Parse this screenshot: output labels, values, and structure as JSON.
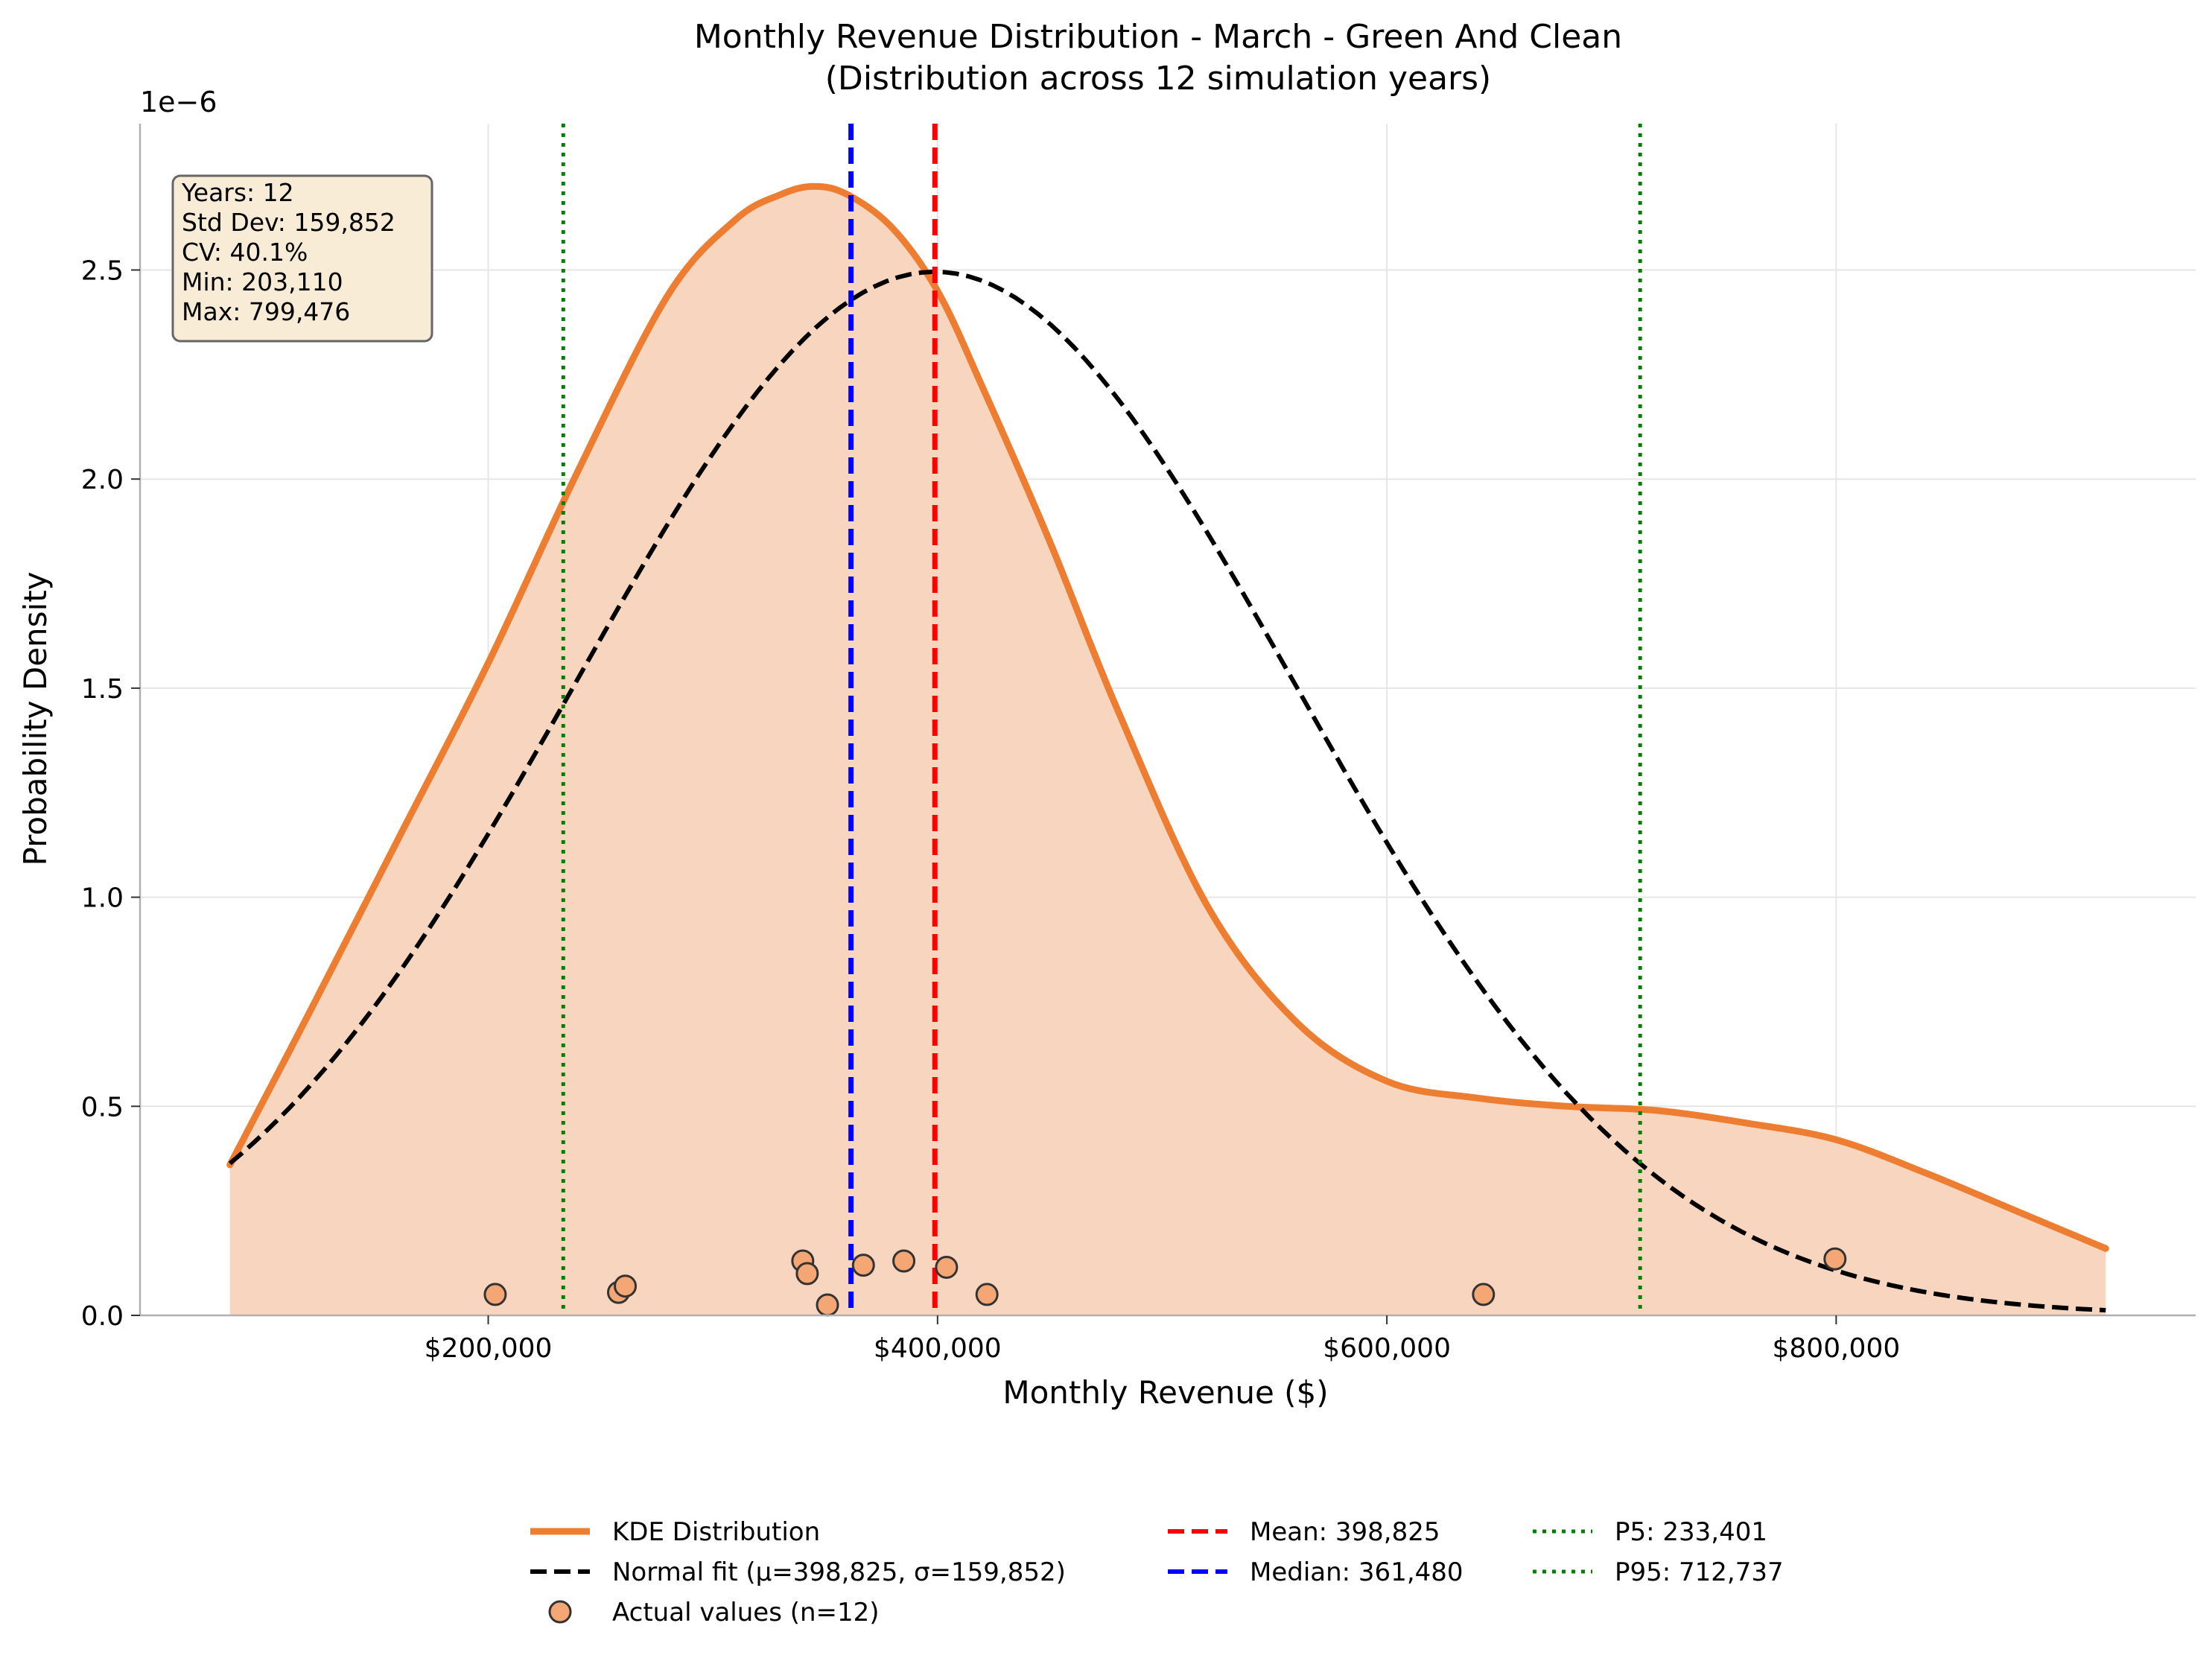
{
  "chart_data": {
    "type": "line",
    "title": "Monthly Revenue Distribution - March - Green And Clean",
    "subtitle": "(Distribution across 12 simulation years)",
    "xlabel": "Monthly Revenue ($)",
    "ylabel": "Probability Density",
    "y_scale_label": "1e−6",
    "xlim": [
      45000,
      960000
    ],
    "ylim": [
      0,
      2.85
    ],
    "x_ticks": [
      200000,
      400000,
      600000,
      800000
    ],
    "x_tick_labels": [
      "$200,000",
      "$400,000",
      "$600,000",
      "$800,000"
    ],
    "y_ticks": [
      0,
      0.5,
      1.0,
      1.5,
      2.0,
      2.5
    ],
    "y_tick_labels": [
      "0.0",
      "0.5",
      "1.0",
      "1.5",
      "2.0",
      "2.5"
    ],
    "grid": true,
    "legend_position": "bottom-center",
    "colors": {
      "kde": "#ED7D31",
      "kde_fill": "#F8D5BF",
      "normal": "#000000",
      "mean": "#FF0000",
      "median": "#0000FF",
      "percentile": "#008000",
      "points_fill": "#F4A774",
      "points_edge": "#333333",
      "grid": "#E6E6E6",
      "stats_box_fill": "#F8ECD6",
      "stats_box_edge": "#666666"
    },
    "stats_box": [
      "Years: 12",
      "Std Dev: 159,852",
      "CV: 40.1%",
      "Min: 203,110",
      "Max: 799,476"
    ],
    "series": [
      {
        "name": "KDE Distribution",
        "kind": "kde",
        "x": [
          85000,
          120000,
          160000,
          200000,
          240000,
          280000,
          310000,
          330000,
          345000,
          360000,
          380000,
          400000,
          420000,
          450000,
          480000,
          520000,
          560000,
          600000,
          640000,
          680000,
          720000,
          760000,
          800000,
          840000,
          880000,
          920000
        ],
        "y": [
          0.36,
          0.72,
          1.14,
          1.56,
          2.02,
          2.44,
          2.62,
          2.68,
          2.7,
          2.68,
          2.6,
          2.45,
          2.22,
          1.85,
          1.45,
          0.98,
          0.7,
          0.56,
          0.52,
          0.5,
          0.49,
          0.46,
          0.42,
          0.34,
          0.25,
          0.16
        ]
      },
      {
        "name": "Normal fit (μ=398,825, σ=159,852)",
        "kind": "normal",
        "mean": 398825,
        "std": 159852,
        "x_range": [
          85000,
          920000
        ]
      },
      {
        "name": "Actual values (n=12)",
        "kind": "points",
        "x": [
          203110,
          258000,
          261000,
          340000,
          342000,
          351000,
          367000,
          385000,
          404000,
          422000,
          643000,
          799476
        ],
        "y": [
          0.05,
          0.055,
          0.07,
          0.13,
          0.1,
          0.025,
          0.12,
          0.13,
          0.115,
          0.05,
          0.05,
          0.135
        ]
      }
    ],
    "vlines": [
      {
        "name": "Mean: 398,825",
        "x": 398825,
        "style": "dashed",
        "color": "#FF0000"
      },
      {
        "name": "Median: 361,480",
        "x": 361480,
        "style": "dashed",
        "color": "#0000FF"
      },
      {
        "name": "P5: 233,401",
        "x": 233401,
        "style": "dotted",
        "color": "#008000"
      },
      {
        "name": "P95: 712,737",
        "x": 712737,
        "style": "dotted",
        "color": "#008000"
      }
    ],
    "legend": [
      {
        "label": "KDE Distribution",
        "marker": "line-thick",
        "color": "#ED7D31"
      },
      {
        "label": "Normal fit (μ=398,825, σ=159,852)",
        "marker": "line-dashed",
        "color": "#000000"
      },
      {
        "label": "Actual values (n=12)",
        "marker": "circle",
        "color": "#F4A774"
      },
      {
        "label": "Mean: 398,825",
        "marker": "line-dashed",
        "color": "#FF0000"
      },
      {
        "label": "Median: 361,480",
        "marker": "line-dashed",
        "color": "#0000FF"
      },
      {
        "label": "P5: 233,401",
        "marker": "line-dotted",
        "color": "#008000"
      },
      {
        "label": "P95: 712,737",
        "marker": "line-dotted",
        "color": "#008000"
      }
    ]
  }
}
